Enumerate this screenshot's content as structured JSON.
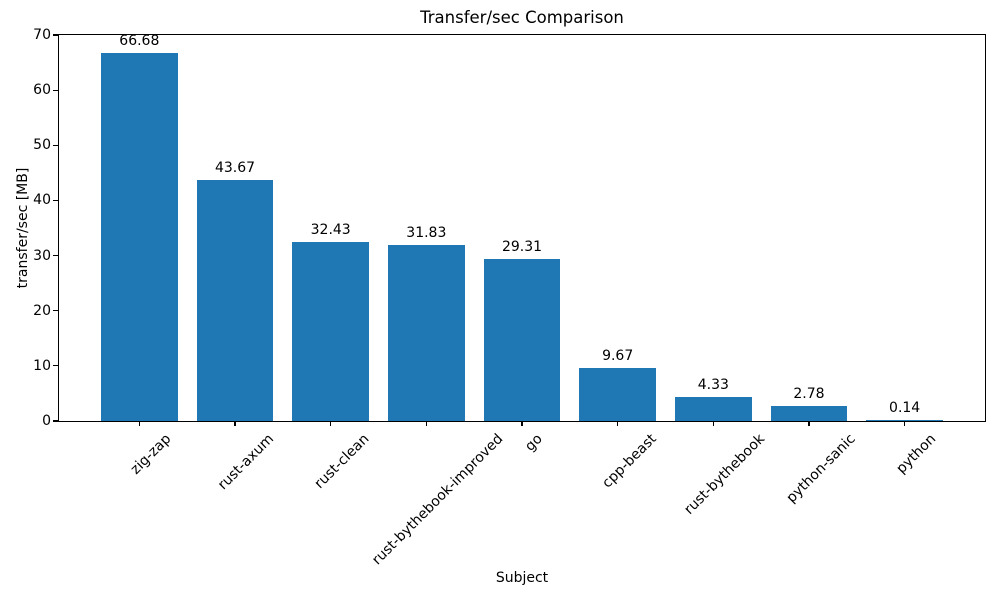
{
  "chart_data": {
    "type": "bar",
    "title": "Transfer/sec Comparison",
    "xlabel": "Subject",
    "ylabel": "transfer/sec [MB]",
    "categories": [
      "zig-zap",
      "rust-axum",
      "rust-clean",
      "rust-bythebook-improved",
      "go",
      "cpp-beast",
      "rust-bythebook",
      "python-sanic",
      "python"
    ],
    "values": [
      66.68,
      43.67,
      32.43,
      31.83,
      29.31,
      9.67,
      4.33,
      2.78,
      0.14
    ],
    "value_labels": [
      "66.68",
      "43.67",
      "32.43",
      "31.83",
      "29.31",
      "9.67",
      "4.33",
      "2.78",
      "0.14"
    ],
    "ylim": [
      0,
      70
    ],
    "yticks": [
      0,
      10,
      20,
      30,
      40,
      50,
      60,
      70
    ],
    "xlim": [
      -0.84,
      8.84
    ],
    "bar_width": 0.8,
    "bar_color": "#1f77b4",
    "grid": false,
    "legend": null,
    "tick_rotation": 45
  }
}
